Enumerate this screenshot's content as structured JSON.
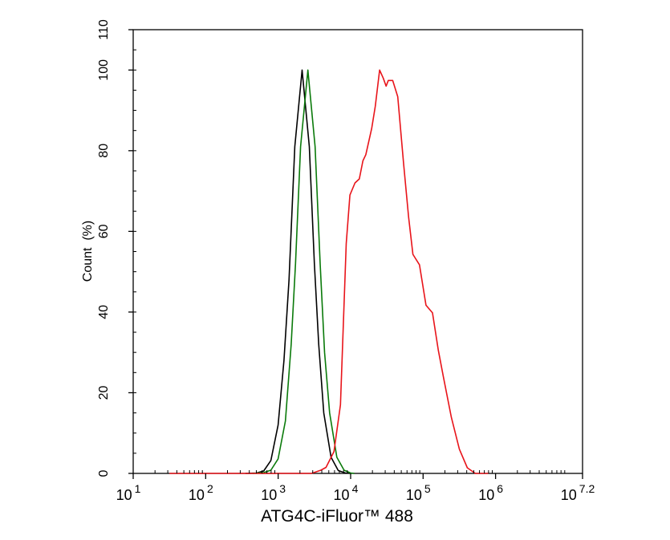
{
  "chart_data": {
    "type": "line",
    "title": "",
    "xlabel": "ATG4C-iFluor™ 488",
    "ylabel": "Count  (%)",
    "xscale": "log10",
    "xlim_log10": [
      1,
      7.2
    ],
    "ylim": [
      0,
      110
    ],
    "grid": false,
    "legend": "none",
    "x_ticks": [
      {
        "base": "10",
        "exp": "1",
        "value": 1
      },
      {
        "base": "10",
        "exp": "2",
        "value": 2
      },
      {
        "base": "10",
        "exp": "3",
        "value": 3
      },
      {
        "base": "10",
        "exp": "4",
        "value": 4
      },
      {
        "base": "10",
        "exp": "5",
        "value": 5
      },
      {
        "base": "10",
        "exp": "6",
        "value": 6
      },
      {
        "base": "10",
        "exp": "7.2",
        "value": 7.2
      }
    ],
    "y_ticks": [
      "0",
      "20",
      "40",
      "60",
      "80",
      "100",
      "110"
    ],
    "series": [
      {
        "name": "black",
        "color": "#000000",
        "points": [
          [
            2.55,
            0
          ],
          [
            2.7,
            0.1
          ],
          [
            2.8,
            0.6
          ],
          [
            2.9,
            3.2
          ],
          [
            3.0,
            12
          ],
          [
            3.08,
            28
          ],
          [
            3.15,
            48
          ],
          [
            3.23,
            81
          ],
          [
            3.33,
            100
          ],
          [
            3.43,
            81
          ],
          [
            3.5,
            52
          ],
          [
            3.56,
            32
          ],
          [
            3.63,
            15
          ],
          [
            3.73,
            4
          ],
          [
            3.83,
            0.7
          ],
          [
            3.93,
            0.1
          ],
          [
            4.0,
            0
          ]
        ]
      },
      {
        "name": "green",
        "color": "#0a7a0a",
        "points": [
          [
            2.65,
            0
          ],
          [
            2.8,
            0.2
          ],
          [
            2.9,
            0.8
          ],
          [
            3.0,
            3.6
          ],
          [
            3.1,
            13
          ],
          [
            3.18,
            32
          ],
          [
            3.24,
            52
          ],
          [
            3.31,
            81
          ],
          [
            3.41,
            100
          ],
          [
            3.51,
            81
          ],
          [
            3.58,
            52
          ],
          [
            3.64,
            30
          ],
          [
            3.71,
            15
          ],
          [
            3.81,
            4
          ],
          [
            3.91,
            0.8
          ],
          [
            4.0,
            0.1
          ],
          [
            4.05,
            0
          ]
        ]
      },
      {
        "name": "red",
        "color": "#e8141a",
        "points": [
          [
            1.5,
            0
          ],
          [
            3.46,
            0
          ],
          [
            3.59,
            0.8
          ],
          [
            3.66,
            1.5
          ],
          [
            3.77,
            5.4
          ],
          [
            3.86,
            17
          ],
          [
            3.9,
            37
          ],
          [
            3.94,
            57
          ],
          [
            3.99,
            69
          ],
          [
            4.06,
            72
          ],
          [
            4.12,
            73
          ],
          [
            4.17,
            77.5
          ],
          [
            4.21,
            79
          ],
          [
            4.29,
            85.5
          ],
          [
            4.34,
            91
          ],
          [
            4.4,
            100
          ],
          [
            4.45,
            98
          ],
          [
            4.49,
            96
          ],
          [
            4.52,
            97.4
          ],
          [
            4.58,
            97.4
          ],
          [
            4.65,
            93.4
          ],
          [
            4.73,
            77
          ],
          [
            4.8,
            63.6
          ],
          [
            4.86,
            54.3
          ],
          [
            4.95,
            51.7
          ],
          [
            5.04,
            41.7
          ],
          [
            5.13,
            39.8
          ],
          [
            5.21,
            30.5
          ],
          [
            5.28,
            23.9
          ],
          [
            5.39,
            13.9
          ],
          [
            5.5,
            6
          ],
          [
            5.61,
            1.4
          ],
          [
            5.72,
            0
          ],
          [
            5.9,
            0
          ]
        ]
      }
    ]
  }
}
